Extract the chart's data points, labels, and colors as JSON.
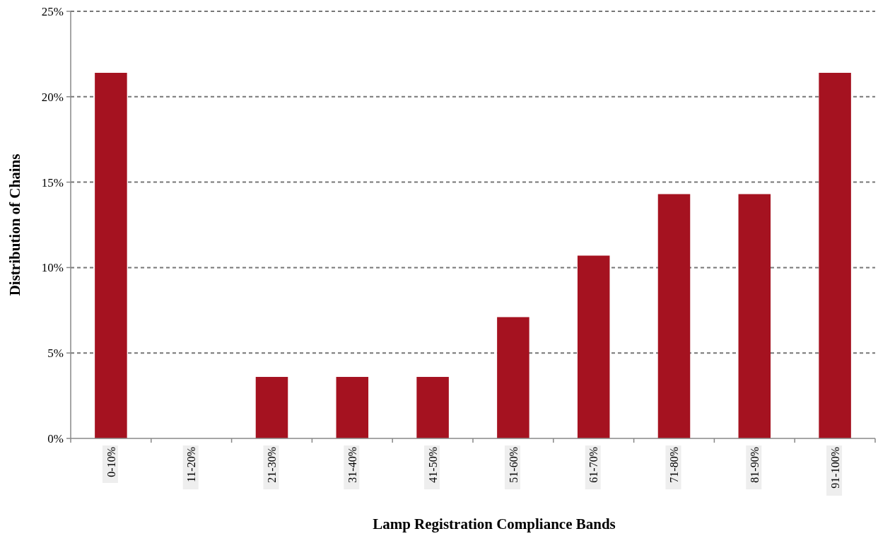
{
  "chart_data": {
    "type": "bar",
    "xlabel": "Lamp Registration Compliance Bands",
    "ylabel": "Distribution of Chains",
    "categories": [
      "0-10%",
      "11-20%",
      "21-30%",
      "31-40%",
      "41-50%",
      "51-60%",
      "61-70%",
      "71-80%",
      "81-90%",
      "91-100%"
    ],
    "values": [
      21.4,
      0,
      3.6,
      3.6,
      3.6,
      7.1,
      10.7,
      14.3,
      14.3,
      21.4
    ],
    "color": "#a51220",
    "ylim": [
      0,
      25
    ],
    "yticks": [
      {
        "value": 0,
        "label": "0%"
      },
      {
        "value": 5,
        "label": "5%"
      },
      {
        "value": 10,
        "label": "10%"
      },
      {
        "value": 15,
        "label": "15%"
      },
      {
        "value": 20,
        "label": "20%"
      },
      {
        "value": 25,
        "label": "25%"
      }
    ],
    "grid": "y"
  }
}
